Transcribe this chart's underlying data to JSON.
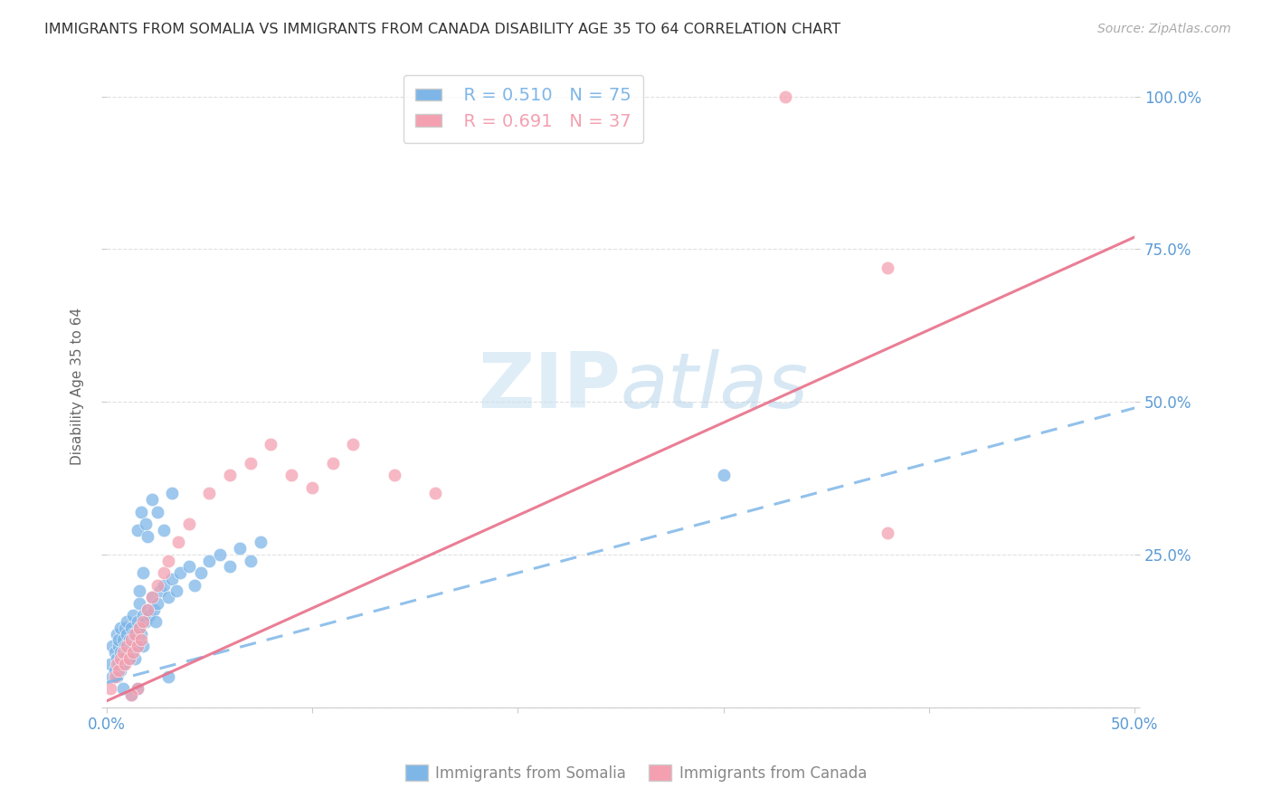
{
  "title": "IMMIGRANTS FROM SOMALIA VS IMMIGRANTS FROM CANADA DISABILITY AGE 35 TO 64 CORRELATION CHART",
  "source": "Source: ZipAtlas.com",
  "ylabel": "Disability Age 35 to 64",
  "xlim": [
    0.0,
    0.5
  ],
  "ylim": [
    0.0,
    1.05
  ],
  "xticks": [
    0.0,
    0.1,
    0.2,
    0.3,
    0.4,
    0.5
  ],
  "xticklabels": [
    "0.0%",
    "",
    "",
    "",
    "",
    "50.0%"
  ],
  "ytick_positions": [
    0.0,
    0.25,
    0.5,
    0.75,
    1.0
  ],
  "ytick_labels": [
    "",
    "25.0%",
    "50.0%",
    "75.0%",
    "100.0%"
  ],
  "somalia_color": "#7EB6E8",
  "canada_color": "#F4A0B0",
  "canada_line_color": "#E8708A",
  "somalia_R": 0.51,
  "somalia_N": 75,
  "canada_R": 0.691,
  "canada_N": 37,
  "somalia_line_x0": 0.0,
  "somalia_line_x1": 0.5,
  "somalia_line_y0": 0.04,
  "somalia_line_y1": 0.49,
  "canada_line_x0": 0.0,
  "canada_line_x1": 0.5,
  "canada_line_y0": 0.01,
  "canada_line_y1": 0.77,
  "somalia_x": [
    0.002,
    0.003,
    0.003,
    0.004,
    0.004,
    0.005,
    0.005,
    0.005,
    0.006,
    0.006,
    0.006,
    0.007,
    0.007,
    0.007,
    0.008,
    0.008,
    0.008,
    0.009,
    0.009,
    0.009,
    0.01,
    0.01,
    0.01,
    0.011,
    0.011,
    0.012,
    0.012,
    0.013,
    0.013,
    0.014,
    0.014,
    0.015,
    0.015,
    0.016,
    0.016,
    0.017,
    0.018,
    0.018,
    0.019,
    0.02,
    0.021,
    0.022,
    0.023,
    0.024,
    0.025,
    0.026,
    0.028,
    0.03,
    0.032,
    0.034,
    0.036,
    0.04,
    0.043,
    0.046,
    0.05,
    0.055,
    0.06,
    0.065,
    0.07,
    0.075,
    0.015,
    0.017,
    0.019,
    0.022,
    0.025,
    0.028,
    0.032,
    0.02,
    0.018,
    0.016,
    0.3,
    0.03,
    0.015,
    0.012,
    0.008
  ],
  "somalia_y": [
    0.07,
    0.05,
    0.1,
    0.06,
    0.09,
    0.08,
    0.12,
    0.05,
    0.1,
    0.07,
    0.11,
    0.06,
    0.09,
    0.13,
    0.08,
    0.11,
    0.07,
    0.1,
    0.13,
    0.08,
    0.12,
    0.09,
    0.14,
    0.11,
    0.08,
    0.13,
    0.1,
    0.12,
    0.15,
    0.11,
    0.08,
    0.14,
    0.1,
    0.13,
    0.17,
    0.12,
    0.15,
    0.1,
    0.14,
    0.16,
    0.15,
    0.18,
    0.16,
    0.14,
    0.17,
    0.19,
    0.2,
    0.18,
    0.21,
    0.19,
    0.22,
    0.23,
    0.2,
    0.22,
    0.24,
    0.25,
    0.23,
    0.26,
    0.24,
    0.27,
    0.29,
    0.32,
    0.3,
    0.34,
    0.32,
    0.29,
    0.35,
    0.28,
    0.22,
    0.19,
    0.38,
    0.05,
    0.03,
    0.02,
    0.03
  ],
  "canada_x": [
    0.002,
    0.004,
    0.005,
    0.006,
    0.007,
    0.008,
    0.009,
    0.01,
    0.011,
    0.012,
    0.013,
    0.014,
    0.015,
    0.016,
    0.017,
    0.018,
    0.02,
    0.022,
    0.025,
    0.028,
    0.03,
    0.035,
    0.04,
    0.05,
    0.06,
    0.07,
    0.08,
    0.09,
    0.1,
    0.11,
    0.12,
    0.14,
    0.16,
    0.33,
    0.38,
    0.015,
    0.012
  ],
  "canada_y": [
    0.03,
    0.05,
    0.07,
    0.06,
    0.08,
    0.09,
    0.07,
    0.1,
    0.08,
    0.11,
    0.09,
    0.12,
    0.1,
    0.13,
    0.11,
    0.14,
    0.16,
    0.18,
    0.2,
    0.22,
    0.24,
    0.27,
    0.3,
    0.35,
    0.38,
    0.4,
    0.43,
    0.38,
    0.36,
    0.4,
    0.43,
    0.38,
    0.35,
    1.0,
    0.72,
    0.03,
    0.02
  ],
  "canada_outlier_x": [
    0.38
  ],
  "canada_outlier_y": [
    0.285
  ],
  "background_color": "#ffffff",
  "grid_color": "#e0e0e0",
  "title_color": "#333333",
  "tick_label_color": "#5b9bd5"
}
